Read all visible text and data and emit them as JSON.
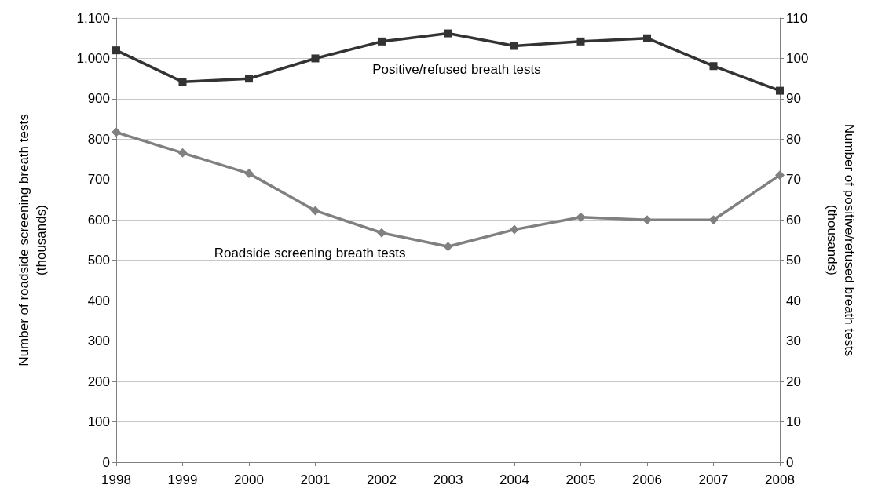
{
  "chart_data": {
    "type": "line",
    "ylabel": "Number of roadside screening breath tests\n(thousands)",
    "y2label": "Number of positive/refused breath tests\n(thousands)",
    "x": [
      1998,
      1999,
      2000,
      2001,
      2002,
      2003,
      2004,
      2005,
      2006,
      2007,
      2008
    ],
    "xlim": [
      1998,
      2008
    ],
    "xticks": [
      1998,
      1999,
      2000,
      2001,
      2002,
      2003,
      2004,
      2005,
      2006,
      2007,
      2008
    ],
    "ylim": [
      0,
      1100
    ],
    "yticks": [
      0,
      100,
      200,
      300,
      400,
      500,
      600,
      700,
      800,
      900,
      {
        "value": 1000,
        "label": "1,000"
      },
      {
        "value": 1100,
        "label": "1,100"
      }
    ],
    "y2lim": [
      0,
      110
    ],
    "y2ticks": [
      0,
      10,
      20,
      30,
      40,
      50,
      60,
      70,
      80,
      90,
      100,
      110
    ],
    "grid": "y",
    "series": [
      {
        "name": "Positive/refused breath tests",
        "color": "#333333",
        "axis": "y2",
        "marker": "square",
        "values": [
          102,
          94.2,
          95,
          100,
          104.2,
          106.2,
          103.1,
          104.2,
          105,
          98.1,
          92
        ]
      },
      {
        "name": "Roadside screening breath tests",
        "color": "#808080",
        "marker": "diamond",
        "values": [
          817,
          766,
          715,
          623,
          568,
          534,
          576,
          607,
          600,
          600,
          711
        ]
      }
    ]
  }
}
